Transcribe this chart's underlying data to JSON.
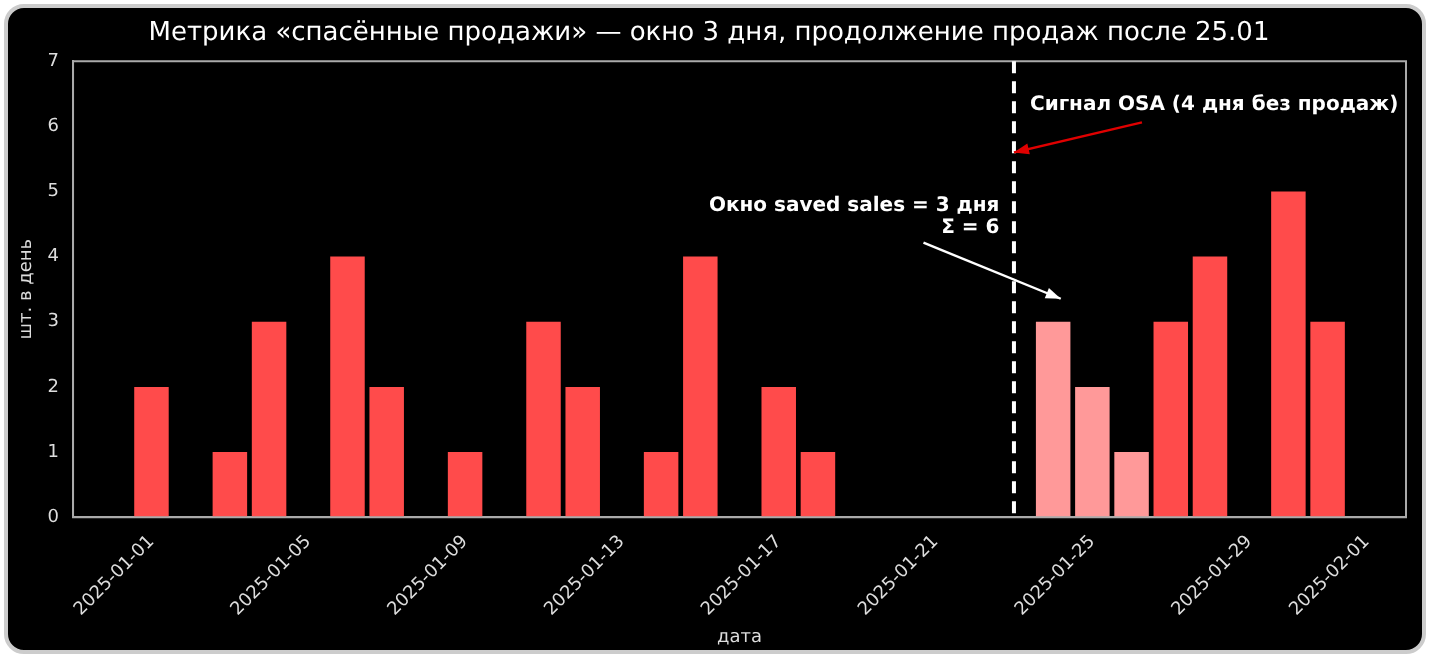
{
  "chart_data": {
    "type": "bar",
    "title": "Метрика «спасённые продажи» — окно 3 дня, продолжение продаж после 25.01",
    "xlabel": "дата",
    "ylabel": "шт. в день",
    "x": [
      "2025-01-01",
      "2025-01-02",
      "2025-01-03",
      "2025-01-04",
      "2025-01-05",
      "2025-01-06",
      "2025-01-07",
      "2025-01-08",
      "2025-01-09",
      "2025-01-10",
      "2025-01-11",
      "2025-01-12",
      "2025-01-13",
      "2025-01-14",
      "2025-01-15",
      "2025-01-16",
      "2025-01-17",
      "2025-01-18",
      "2025-01-19",
      "2025-01-20",
      "2025-01-21",
      "2025-01-22",
      "2025-01-23",
      "2025-01-24",
      "2025-01-25",
      "2025-01-26",
      "2025-01-27",
      "2025-01-28",
      "2025-01-29",
      "2025-01-30",
      "2025-01-31"
    ],
    "series": [
      {
        "values": [
          2,
          0,
          1,
          3,
          0,
          4,
          2,
          0,
          1,
          0,
          3,
          2,
          0,
          1,
          4,
          0,
          2,
          1,
          0,
          0,
          0,
          0,
          0,
          3,
          2,
          1,
          3,
          4,
          0,
          5,
          3
        ],
        "colors": [
          "#ff4b4b",
          "#ff4b4b",
          "#ff4b4b",
          "#ff4b4b",
          "#ff4b4b",
          "#ff4b4b",
          "#ff4b4b",
          "#ff4b4b",
          "#ff4b4b",
          "#ff4b4b",
          "#ff4b4b",
          "#ff4b4b",
          "#ff4b4b",
          "#ff4b4b",
          "#ff4b4b",
          "#ff4b4b",
          "#ff4b4b",
          "#ff4b4b",
          "#ff4b4b",
          "#ff4b4b",
          "#ff4b4b",
          "#ff4b4b",
          "#ff4b4b",
          "#ff9999",
          "#ff9999",
          "#ff9999",
          "#ff4b4b",
          "#ff4b4b",
          "#ff4b4b",
          "#ff4b4b",
          "#ff4b4b"
        ]
      }
    ],
    "xlim": [
      "2024-12-30",
      "2025-02-02"
    ],
    "xticks": [
      "2025-01-01",
      "2025-01-05",
      "2025-01-09",
      "2025-01-13",
      "2025-01-17",
      "2025-01-21",
      "2025-01-25",
      "2025-01-29",
      "2025-02-01"
    ],
    "ylim": [
      0,
      7
    ],
    "yticks": [
      0,
      1,
      2,
      3,
      4,
      5,
      6,
      7
    ],
    "ref_lines": [
      {
        "axis": "x",
        "value": "2025-01-23",
        "color": "#ffffff",
        "line_style": "dashed"
      }
    ],
    "annotations": [
      {
        "text": "Сигнал OSA (4 дня без продаж)",
        "x": "2025-01-23",
        "y": 5.6
      },
      "Окно saved sales = 3 дня\nΣ = 6"
    ],
    "grid": false,
    "legend": false
  }
}
